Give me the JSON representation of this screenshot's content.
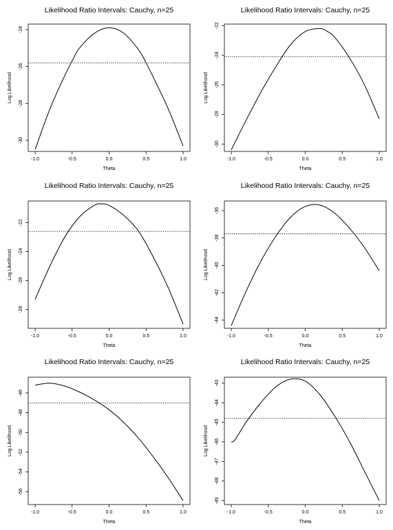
{
  "chart_data": [
    {
      "type": "line",
      "title": "Likelihood Ratio Intervals: Cauchy, n=25",
      "xlabel": "Theta",
      "ylabel": "Log Likelihood",
      "xlim": [
        -1.0,
        1.0
      ],
      "ylim": [
        -30.6,
        -23.7
      ],
      "xticks": [
        "-1.0",
        "-0.5",
        "0.0",
        "0.5",
        "1.0"
      ],
      "yticks": [
        "-24",
        "-26",
        "-28",
        "-30"
      ],
      "cutoff": -25.8,
      "series": [
        {
          "x": [
            -1.0,
            -0.8,
            -0.6,
            -0.5,
            -0.4,
            -0.2,
            0.0,
            0.2,
            0.4,
            0.5,
            0.6,
            0.8,
            1.0
          ],
          "y": [
            -30.5,
            -28.3,
            -26.5,
            -25.7,
            -25.0,
            -24.2,
            -23.9,
            -24.2,
            -25.1,
            -25.8,
            -26.6,
            -28.3,
            -30.3
          ]
        }
      ]
    },
    {
      "type": "line",
      "title": "Likelihood Ratio Intervals: Cauchy, n=25",
      "xlabel": "Theta",
      "ylabel": "Log Likelihood",
      "xlim": [
        -1.0,
        1.0
      ],
      "ylim": [
        -30.5,
        -21.9
      ],
      "xticks": [
        "-1.0",
        "-0.5",
        "0.0",
        "0.5",
        "1.0"
      ],
      "yticks": [
        "-22",
        "-24",
        "-26",
        "-28",
        "-30"
      ],
      "cutoff": -24.1,
      "series": [
        {
          "x": [
            -1.0,
            -0.8,
            -0.6,
            -0.4,
            -0.2,
            0.0,
            0.2,
            0.3,
            0.4,
            0.6,
            0.8,
            1.0
          ],
          "y": [
            -30.4,
            -28.4,
            -26.5,
            -24.8,
            -23.3,
            -22.4,
            -22.2,
            -22.4,
            -22.8,
            -24.2,
            -26.0,
            -28.3
          ]
        }
      ]
    },
    {
      "type": "line",
      "title": "Likelihood Ratio Intervals: Cauchy, n=25",
      "xlabel": "Theta",
      "ylabel": "Log Likelihood",
      "xlim": [
        -1.0,
        1.0
      ],
      "ylim": [
        -29.3,
        -20.5
      ],
      "xticks": [
        "-1.0",
        "-0.5",
        "0.0",
        "0.5",
        "1.0"
      ],
      "yticks": [
        "-22",
        "-24",
        "-26",
        "-28"
      ],
      "cutoff": -22.6,
      "series": [
        {
          "x": [
            -1.0,
            -0.8,
            -0.6,
            -0.4,
            -0.2,
            -0.1,
            0.0,
            0.2,
            0.4,
            0.6,
            0.8,
            1.0
          ],
          "y": [
            -27.3,
            -25.0,
            -23.0,
            -21.6,
            -20.8,
            -20.7,
            -20.8,
            -21.5,
            -22.6,
            -24.4,
            -26.5,
            -29.0
          ]
        }
      ]
    },
    {
      "type": "line",
      "title": "Likelihood Ratio Intervals: Cauchy, n=25",
      "xlabel": "Theta",
      "ylabel": "Log Likelihood",
      "xlim": [
        -1.0,
        1.0
      ],
      "ylim": [
        -44.6,
        -35.3
      ],
      "xticks": [
        "-1.0",
        "-0.5",
        "0.0",
        "0.5",
        "1.0"
      ],
      "yticks": [
        "-36",
        "-38",
        "-40",
        "-42",
        "-44"
      ],
      "cutoff": -37.7,
      "series": [
        {
          "x": [
            -1.0,
            -0.8,
            -0.6,
            -0.4,
            -0.2,
            0.0,
            0.2,
            0.4,
            0.6,
            0.8,
            1.0
          ],
          "y": [
            -44.4,
            -41.9,
            -39.7,
            -37.9,
            -36.5,
            -35.7,
            -35.6,
            -36.2,
            -37.3,
            -38.7,
            -40.4
          ]
        }
      ]
    },
    {
      "type": "line",
      "title": "Likelihood Ratio Intervals: Cauchy, n=25",
      "xlabel": "Theta",
      "ylabel": "Log Likelihood",
      "xlim": [
        -1.0,
        1.0
      ],
      "ylim": [
        -57.3,
        -44.4
      ],
      "xticks": [
        "-1.0",
        "-0.5",
        "0.0",
        "0.5",
        "1.0"
      ],
      "yticks": [
        "-46",
        "-48",
        "-50",
        "-52",
        "-54",
        "-56"
      ],
      "cutoff": -47.0,
      "series": [
        {
          "x": [
            -1.0,
            -0.8,
            -0.6,
            -0.4,
            -0.2,
            0.0,
            0.2,
            0.4,
            0.6,
            0.8,
            1.0
          ],
          "y": [
            -45.2,
            -45.0,
            -45.3,
            -45.9,
            -46.7,
            -47.7,
            -49.0,
            -50.6,
            -52.5,
            -54.6,
            -56.9
          ]
        }
      ]
    },
    {
      "type": "line",
      "title": "Likelihood Ratio Intervals: Cauchy, n=25",
      "xlabel": "Theta",
      "ylabel": "Log Likelihood",
      "xlim": [
        -1.0,
        1.0
      ],
      "ylim": [
        -49.2,
        -42.7
      ],
      "xticks": [
        "-1.0",
        "-0.5",
        "0.0",
        "0.5",
        "1.0"
      ],
      "yticks": [
        "-43",
        "-44",
        "-45",
        "-46",
        "-47",
        "-48",
        "-49"
      ],
      "cutoff": -44.8,
      "series": [
        {
          "x": [
            -1.0,
            -0.95,
            -0.8,
            -0.6,
            -0.4,
            -0.2,
            0.0,
            0.2,
            0.4,
            0.6,
            0.8,
            1.0
          ],
          "y": [
            -46.0,
            -45.9,
            -45.0,
            -44.0,
            -43.2,
            -42.8,
            -42.9,
            -43.6,
            -44.7,
            -46.0,
            -47.5,
            -49.0
          ]
        }
      ]
    }
  ]
}
